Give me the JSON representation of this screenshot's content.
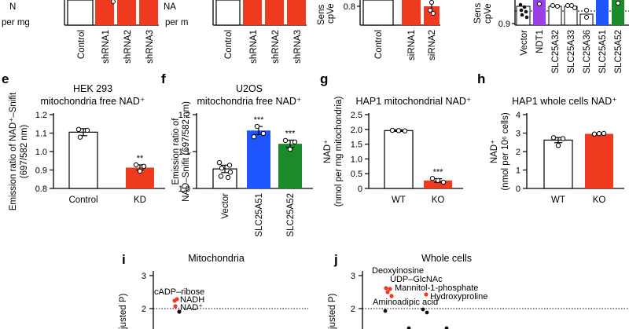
{
  "panel_labels": {
    "e": "e",
    "f": "f",
    "g": "g",
    "h": "h",
    "i": "i",
    "j": "j"
  },
  "colors": {
    "red": "#f03a1f",
    "blue": "#1f55ff",
    "green": "#1a8a2a",
    "purple": "#9b3fe6",
    "black": "#111111"
  },
  "top_fragments": {
    "a": {
      "ylabel_frag": "N",
      "ylabel_frag2": "per mg",
      "categories": [
        "Control",
        "shRNA1",
        "shRNA2",
        "shRNA3"
      ]
    },
    "b": {
      "ylabel_frag": "NA",
      "ylabel_frag2": "per m",
      "categories": [
        "Control",
        "shRNA1",
        "shRNA2",
        "shRNA3"
      ]
    },
    "c": {
      "ylabel_frag": "Sens",
      "ylabel_frag2": "cpVe",
      "tick": "0.8",
      "categories": [
        "Control",
        "siRNA1",
        "siRNA2"
      ]
    },
    "d": {
      "ylabel_frag": "Sens",
      "ylabel_frag2": "cpVe",
      "tick": "0.9",
      "categories": [
        "Vector",
        "NDT1",
        "SLC25A32",
        "SLC25A33",
        "SLC25A36",
        "SLC25A51",
        "SLC25A52"
      ]
    }
  },
  "chart_data": [
    {
      "id": "e",
      "type": "bar",
      "title": "HEK 293",
      "subtitle": "mitochondria free NAD⁺",
      "ylabel": "Emission ratio of NAD⁺–Snifit",
      "ylabel2": "(697/582 nm)",
      "categories": [
        "Control",
        "KD"
      ],
      "values": [
        1.105,
        0.913
      ],
      "ylim": [
        0.8,
        1.2
      ],
      "yticks": [
        "0.8",
        "0.9",
        "1.0",
        "1.1",
        "1.2"
      ],
      "significance": [
        "",
        "**"
      ]
    },
    {
      "id": "f",
      "type": "bar",
      "title": "U2OS",
      "subtitle": "mitochondria free NAD⁺",
      "ylabel": "Emission ratio of",
      "ylabel2": "NAD–Snifit (697/582 nm)",
      "categories": [
        "Vector",
        "SLC25A51",
        "SLC25A52"
      ],
      "values": [
        1.053,
        1.157,
        1.121
      ],
      "ylim": [
        1.0,
        1.2
      ],
      "yticks": [
        "1.0",
        "1.1",
        "1.2"
      ],
      "significance": [
        "",
        "***",
        "***"
      ]
    },
    {
      "id": "g",
      "type": "bar",
      "title": "HAP1 mitochondrial NAD⁺",
      "ylabel": "NAD⁺",
      "ylabel2": "(nmol per mg mitochondria)",
      "categories": [
        "WT",
        "KO"
      ],
      "values": [
        1.96,
        0.27
      ],
      "ylim": [
        0,
        2.5
      ],
      "yticks": [
        "0",
        "0.5",
        "1.0",
        "1.5",
        "2.0",
        "2.5"
      ],
      "significance": [
        "",
        "***"
      ]
    },
    {
      "id": "h",
      "type": "bar",
      "title": "HAP1 whole cells NAD⁺",
      "ylabel": "NAD⁺",
      "ylabel2": "(nmol per 10⁶ cells)",
      "categories": [
        "WT",
        "KO"
      ],
      "values": [
        2.62,
        2.96
      ],
      "ylim": [
        0,
        4
      ],
      "yticks": [
        "0",
        "1",
        "2",
        "3",
        "4"
      ],
      "significance": [
        "",
        ""
      ]
    },
    {
      "id": "i",
      "type": "scatter",
      "title": "Mitochondria",
      "ylabel": "justed P)",
      "yticks": [
        "2",
        "3"
      ],
      "ylim": [
        1.5,
        3.3
      ],
      "threshold": 2,
      "labels": [
        "cADP–ribose",
        "NADH",
        "NAD⁺"
      ]
    },
    {
      "id": "j",
      "type": "scatter",
      "title": "Whole cells",
      "ylabel": "justed P)",
      "yticks": [
        "2",
        "3"
      ],
      "ylim": [
        1.5,
        3.3
      ],
      "threshold": 2,
      "labels": [
        "Deoxyinosine",
        "UDP–GlcNAc",
        "Mannitol-1-phosphate",
        "Hydroxyproline",
        "Aminoadipic acid"
      ]
    }
  ]
}
